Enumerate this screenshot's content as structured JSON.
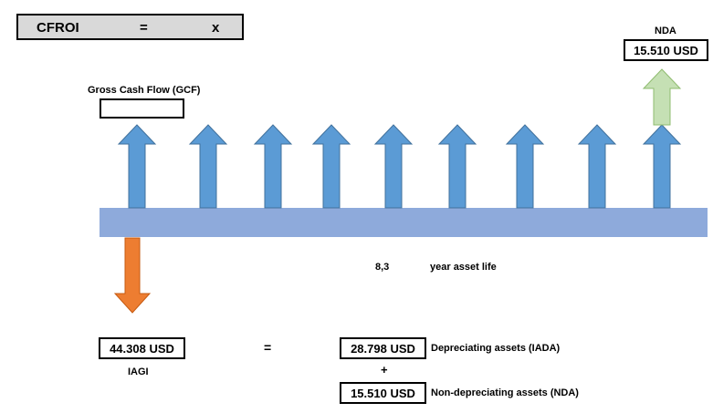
{
  "title": {
    "left": "CFROI",
    "equals": "=",
    "op": "x"
  },
  "nda_top": {
    "label": "NDA",
    "value": "15.510 USD"
  },
  "gcf": {
    "label": "Gross Cash Flow (GCF)",
    "value": ""
  },
  "asset_life": {
    "years": "8,3",
    "text": "year asset life"
  },
  "iagi": {
    "value": "44.308 USD",
    "label": "IAGI"
  },
  "equation": {
    "equals": "=",
    "plus": "+"
  },
  "iada": {
    "value": "28.798 USD",
    "label": "Depreciating assets (IADA)"
  },
  "nda_bottom": {
    "value": "15.510 USD",
    "label": "Non-depreciating assets (NDA)"
  },
  "colors": {
    "arrow_blue": "#5b9bd5",
    "arrow_orange": "#ed7d31",
    "arrow_green": "#c5e0b4",
    "timeline": "#8eaadb"
  }
}
